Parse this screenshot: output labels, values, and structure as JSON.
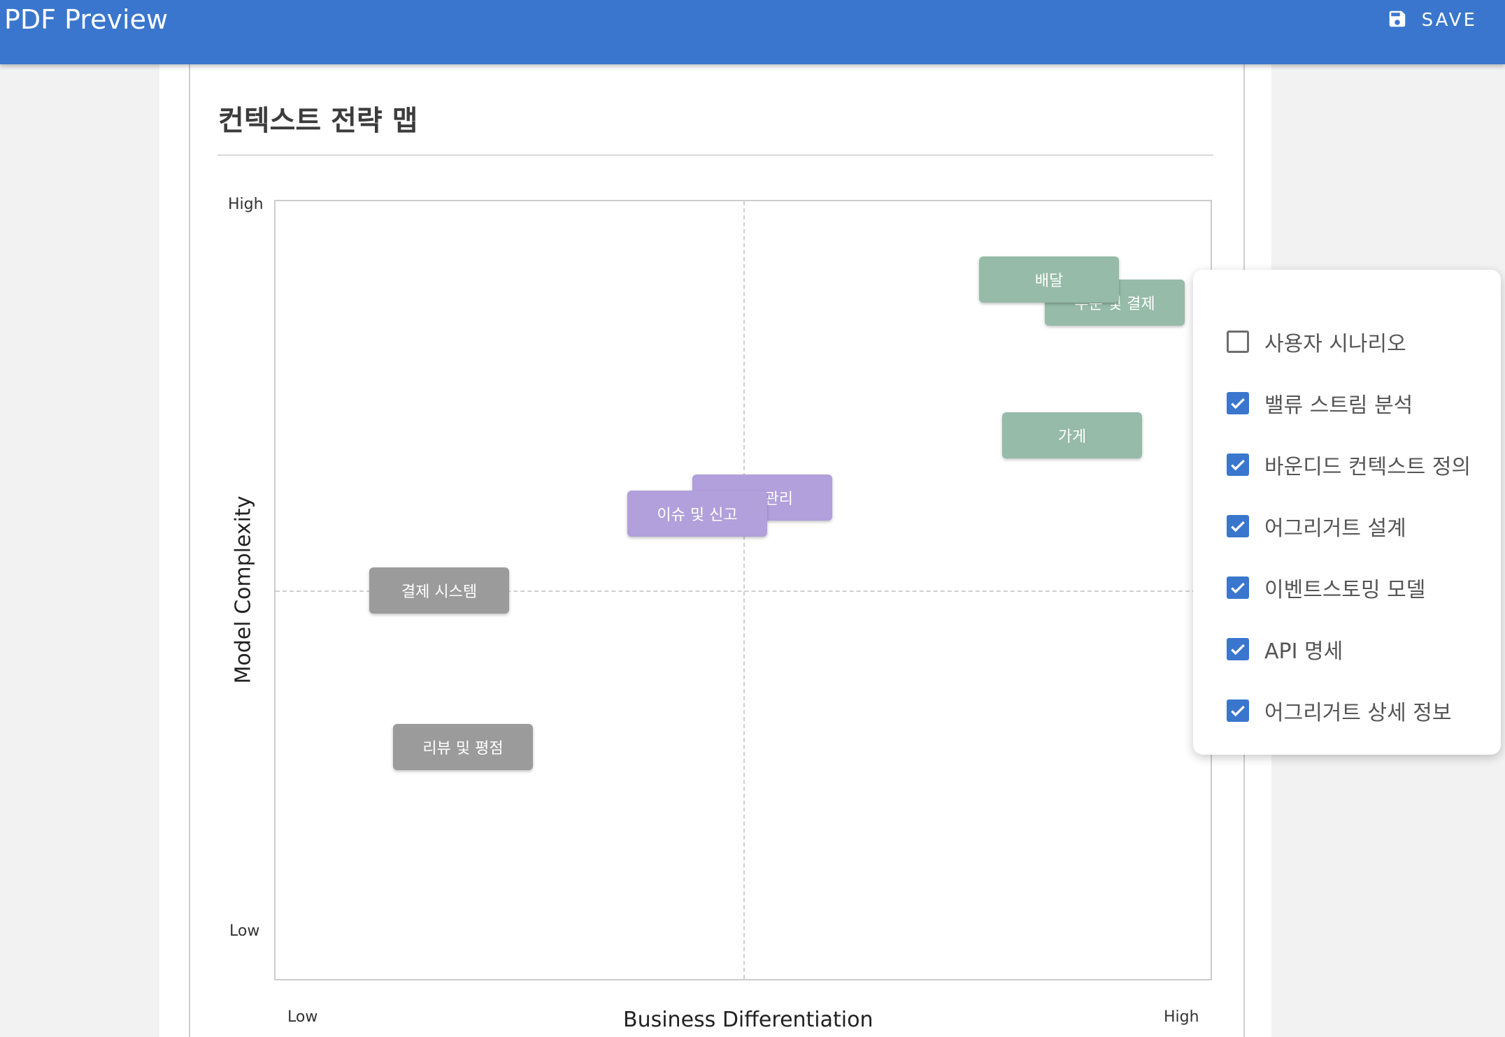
{
  "appbar": {
    "title": "PDF Preview",
    "save_label": "SAVE"
  },
  "page": {
    "title": "컨텍스트 전략 맵"
  },
  "chart_data": {
    "type": "scatter",
    "title": "",
    "xlabel": "Business Differentiation",
    "ylabel": "Model Complexity",
    "x_ticks": [
      "Low",
      "High"
    ],
    "y_ticks": [
      "High",
      "Low"
    ],
    "grid": "quadrant dividers",
    "points": [
      {
        "label": "배달",
        "group": "green"
      },
      {
        "label": "주문 및 결제",
        "group": "green"
      },
      {
        "label": "가게",
        "group": "green"
      },
      {
        "label": "회원 관리",
        "group": "purple"
      },
      {
        "label": "이슈 및 신고",
        "group": "purple"
      },
      {
        "label": "결제 시스템",
        "group": "gray"
      },
      {
        "label": "리뷰 및 평점",
        "group": "gray"
      }
    ]
  },
  "panel": {
    "options": [
      {
        "label": "사용자 시나리오",
        "checked": false
      },
      {
        "label": "밸류 스트림 분석",
        "checked": true
      },
      {
        "label": "바운디드 컨텍스트 정의",
        "checked": true
      },
      {
        "label": "어그리거트 설계",
        "checked": true
      },
      {
        "label": "이벤트스토밍 모델",
        "checked": true
      },
      {
        "label": "API 명세",
        "checked": true
      },
      {
        "label": "어그리거트 상세 정보",
        "checked": true
      }
    ]
  },
  "colors": {
    "appbar": "#3a76cd",
    "green": "#96bba8",
    "purple": "#b1a0db",
    "gray": "#9b9b9b"
  },
  "icons": {
    "save": "floppy-disk-icon",
    "check": "check-icon"
  }
}
